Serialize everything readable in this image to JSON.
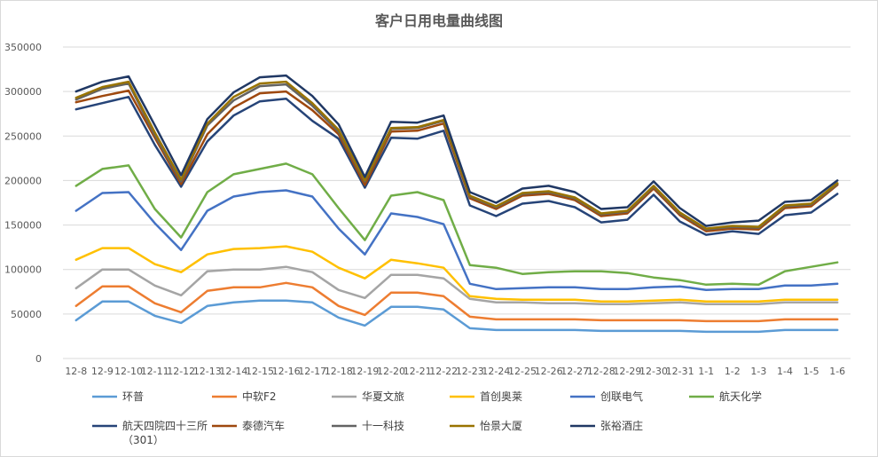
{
  "chart_data": {
    "type": "line",
    "title": "客户日用电量曲线图",
    "xlabel": "",
    "ylabel": "",
    "ylim": [
      0,
      350000
    ],
    "yticks": [
      "0",
      "50000",
      "100000",
      "150000",
      "200000",
      "250000",
      "300000",
      "350000"
    ],
    "grid": true,
    "legend_position": "bottom",
    "categories": [
      "12-8",
      "12-9",
      "12-10",
      "12-11",
      "12-12",
      "12-13",
      "12-14",
      "12-15",
      "12-16",
      "12-17",
      "12-18",
      "12-19",
      "12-20",
      "12-21",
      "12-22",
      "12-23",
      "12-24",
      "12-25",
      "12-26",
      "12-27",
      "12-28",
      "12-29",
      "12-30",
      "12-31",
      "1-1",
      "1-2",
      "1-3",
      "1-4",
      "1-5",
      "1-6"
    ],
    "series": [
      {
        "name": "环普",
        "color": "#5b9bd5",
        "values": [
          43000,
          64000,
          64000,
          48000,
          40000,
          59000,
          63000,
          65000,
          65000,
          63000,
          46000,
          37000,
          58000,
          58000,
          55000,
          34000,
          32000,
          32000,
          32000,
          32000,
          31000,
          31000,
          31000,
          31000,
          30000,
          30000,
          30000,
          32000,
          32000,
          32000
        ]
      },
      {
        "name": "中软F2",
        "color": "#ed7d31",
        "values": [
          59000,
          81000,
          81000,
          62000,
          52000,
          76000,
          80000,
          80000,
          85000,
          80000,
          59000,
          49000,
          74000,
          74000,
          70000,
          47000,
          44000,
          44000,
          44000,
          44000,
          43000,
          43000,
          43000,
          43000,
          42000,
          42000,
          42000,
          44000,
          44000,
          44000
        ]
      },
      {
        "name": "华夏文旅",
        "color": "#a5a5a5",
        "values": [
          79000,
          100000,
          100000,
          82000,
          71000,
          98000,
          100000,
          100000,
          103000,
          97000,
          77000,
          68000,
          94000,
          94000,
          90000,
          67000,
          63000,
          63000,
          62000,
          62000,
          61000,
          61000,
          62000,
          63000,
          61000,
          61000,
          61000,
          63000,
          63000,
          63000
        ]
      },
      {
        "name": "首创奥莱",
        "color": "#ffc000",
        "values": [
          111000,
          124000,
          124000,
          106000,
          97000,
          117000,
          123000,
          124000,
          126000,
          120000,
          102000,
          90000,
          111000,
          107000,
          102000,
          70000,
          67000,
          66000,
          66000,
          66000,
          64000,
          64000,
          65000,
          66000,
          64000,
          64000,
          64000,
          66000,
          66000,
          66000
        ]
      },
      {
        "name": "创联电气",
        "color": "#4472c4",
        "values": [
          166000,
          186000,
          187000,
          152000,
          122000,
          166000,
          182000,
          187000,
          189000,
          182000,
          146000,
          117000,
          163000,
          159000,
          151000,
          84000,
          78000,
          79000,
          80000,
          80000,
          78000,
          78000,
          80000,
          81000,
          77000,
          78000,
          78000,
          82000,
          82000,
          84000
        ]
      },
      {
        "name": "航天化学",
        "color": "#70ad47",
        "values": [
          194000,
          213000,
          217000,
          168000,
          136000,
          187000,
          207000,
          213000,
          219000,
          207000,
          169000,
          133000,
          183000,
          187000,
          178000,
          105000,
          102000,
          95000,
          97000,
          98000,
          98000,
          96000,
          91000,
          88000,
          83000,
          84000,
          83000,
          98000,
          103000,
          108000
        ]
      },
      {
        "name": "航天四院四十三所（301）",
        "color": "#264478",
        "values": [
          280000,
          287000,
          294000,
          240000,
          193000,
          244000,
          273000,
          289000,
          292000,
          267000,
          247000,
          192000,
          248000,
          247000,
          256000,
          172000,
          160000,
          174000,
          177000,
          170000,
          153000,
          156000,
          184000,
          154000,
          139000,
          143000,
          140000,
          161000,
          164000,
          185000
        ]
      },
      {
        "name": "泰德汽车",
        "color": "#9e480e",
        "values": [
          288000,
          295000,
          301000,
          248000,
          196000,
          252000,
          282000,
          298000,
          300000,
          279000,
          252000,
          195000,
          255000,
          256000,
          264000,
          180000,
          168000,
          183000,
          185000,
          178000,
          160000,
          163000,
          191000,
          161000,
          143000,
          146000,
          145000,
          169000,
          171000,
          195000
        ]
      },
      {
        "name": "十一科技",
        "color": "#636363",
        "values": [
          291000,
          303000,
          309000,
          251000,
          199000,
          262000,
          290000,
          306000,
          308000,
          284000,
          255000,
          199000,
          258000,
          259000,
          267000,
          182000,
          170000,
          185000,
          187000,
          180000,
          162000,
          165000,
          193000,
          163000,
          145000,
          148000,
          147000,
          171000,
          173000,
          196000
        ]
      },
      {
        "name": "怡景大厦",
        "color": "#997300",
        "values": [
          293000,
          305000,
          311000,
          254000,
          201000,
          264000,
          294000,
          309000,
          311000,
          287000,
          257000,
          200000,
          259000,
          260000,
          268000,
          183000,
          171000,
          186000,
          188000,
          181000,
          163000,
          166000,
          194000,
          164000,
          146000,
          149000,
          148000,
          172000,
          174000,
          197000
        ]
      },
      {
        "name": "张裕酒庄",
        "color": "#203864",
        "values": [
          300000,
          311000,
          317000,
          262000,
          206000,
          269000,
          299000,
          316000,
          318000,
          295000,
          263000,
          204000,
          266000,
          265000,
          273000,
          187000,
          175000,
          191000,
          194000,
          187000,
          168000,
          170000,
          199000,
          169000,
          149000,
          153000,
          155000,
          176000,
          178000,
          200000
        ]
      }
    ]
  }
}
